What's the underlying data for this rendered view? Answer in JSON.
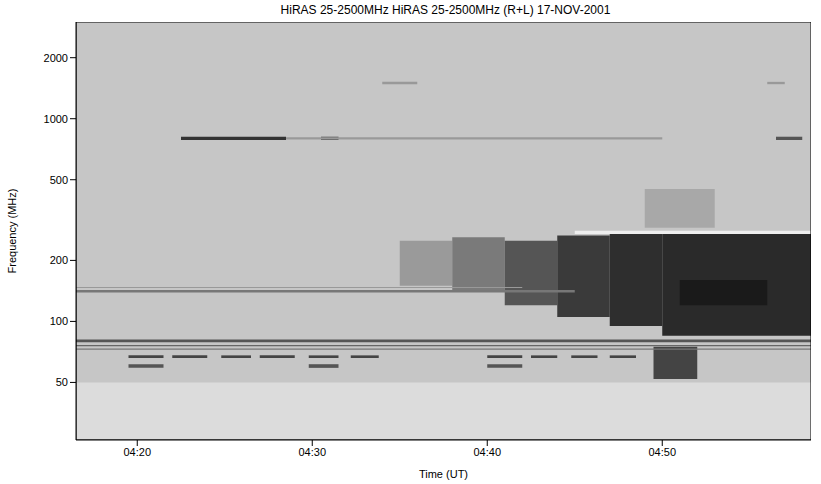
{
  "chart_data": {
    "type": "spectrogram",
    "title": "HiRAS  25-2500MHz HiRAS  25-2500MHz (R+L)  17-NOV-2001",
    "x_label": "Time (UT)",
    "y_label": "Frequency (MHz)",
    "xlim": [
      256.5,
      298.5
    ],
    "xticks": [
      {
        "value": 260,
        "label": "04:20"
      },
      {
        "value": 270,
        "label": "04:30"
      },
      {
        "value": 280,
        "label": "04:40"
      },
      {
        "value": 290,
        "label": "04:50"
      }
    ],
    "ylim": [
      26,
      3000
    ],
    "yticks": [
      50,
      100,
      200,
      500,
      1000,
      2000
    ],
    "log": "y",
    "grid": false,
    "color": "#c6c6c6",
    "features": [
      {
        "time": [
          256.5,
          298.5
        ],
        "frequency": [
          26,
          50
        ],
        "color": "#dcdcdc"
      },
      {
        "time": [
          275,
          278
        ],
        "frequency": [
          150,
          250
        ],
        "color": "#9a9a9a"
      },
      {
        "time": [
          278,
          281
        ],
        "frequency": [
          140,
          260
        ],
        "color": "#7a7a7a"
      },
      {
        "time": [
          281,
          284
        ],
        "frequency": [
          120,
          250
        ],
        "color": "#555555"
      },
      {
        "time": [
          284,
          287
        ],
        "frequency": [
          105,
          265
        ],
        "color": "#3a3a3a"
      },
      {
        "time": [
          287,
          290
        ],
        "frequency": [
          95,
          270
        ],
        "color": "#2e2e2e"
      },
      {
        "time": [
          290,
          298.5
        ],
        "frequency": [
          85,
          270
        ],
        "color": "#2a2a2a"
      },
      {
        "time": [
          291,
          296
        ],
        "frequency": [
          120,
          160
        ],
        "color": "#1a1a1a"
      },
      {
        "time": [
          285,
          298.5
        ],
        "frequency": [
          270,
          280
        ],
        "color": "#eeeeee"
      },
      {
        "time": [
          289,
          293
        ],
        "frequency": [
          290,
          450
        ],
        "color": "#a8a8a8"
      },
      {
        "time": [
          289.5,
          292
        ],
        "frequency": [
          52,
          75
        ],
        "color": "#444444"
      },
      {
        "time": [
          256.5,
          298.5
        ],
        "frequency": [
          79,
          81.5
        ],
        "color": "#555555"
      },
      {
        "time": [
          256.5,
          298.5
        ],
        "frequency": [
          75.5,
          76.5
        ],
        "color": "#666666"
      },
      {
        "time": [
          256.5,
          298.5
        ],
        "frequency": [
          72.5,
          73.5
        ],
        "color": "#777777"
      },
      {
        "time": [
          256.5,
          285
        ],
        "frequency": [
          139,
          143
        ],
        "color": "#777777"
      },
      {
        "time": [
          256.5,
          282
        ],
        "frequency": [
          146,
          148
        ],
        "color": "#999999"
      },
      {
        "time": [
          262.5,
          268.5
        ],
        "frequency": [
          785,
          815
        ],
        "color": "#333333"
      },
      {
        "time": [
          270.5,
          271.5
        ],
        "frequency": [
          785,
          815
        ],
        "color": "#444444"
      },
      {
        "time": [
          268.5,
          290
        ],
        "frequency": [
          790,
          810
        ],
        "color": "#999999"
      },
      {
        "time": [
          296.5,
          298
        ],
        "frequency": [
          785,
          815
        ],
        "color": "#555555"
      },
      {
        "time": [
          274,
          276
        ],
        "frequency": [
          1480,
          1520
        ],
        "color": "#999999"
      },
      {
        "time": [
          296,
          297
        ],
        "frequency": [
          1480,
          1520
        ],
        "color": "#999999"
      },
      {
        "time": [
          259.5,
          261.5
        ],
        "frequency": [
          66,
          68
        ],
        "color": "#444444"
      },
      {
        "time": [
          262,
          264
        ],
        "frequency": [
          66,
          68
        ],
        "color": "#444444"
      },
      {
        "time": [
          264.8,
          266.5
        ],
        "frequency": [
          66,
          68
        ],
        "color": "#444444"
      },
      {
        "time": [
          267,
          269
        ],
        "frequency": [
          66,
          68
        ],
        "color": "#444444"
      },
      {
        "time": [
          269.8,
          271.5
        ],
        "frequency": [
          66,
          68
        ],
        "color": "#444444"
      },
      {
        "time": [
          272.2,
          273.8
        ],
        "frequency": [
          66,
          68
        ],
        "color": "#444444"
      },
      {
        "time": [
          280,
          282
        ],
        "frequency": [
          66,
          68
        ],
        "color": "#444444"
      },
      {
        "time": [
          282.5,
          284
        ],
        "frequency": [
          66,
          68
        ],
        "color": "#444444"
      },
      {
        "time": [
          284.8,
          286.3
        ],
        "frequency": [
          66,
          68
        ],
        "color": "#444444"
      },
      {
        "time": [
          287,
          288.5
        ],
        "frequency": [
          66,
          68
        ],
        "color": "#444444"
      },
      {
        "time": [
          259.5,
          261.5
        ],
        "frequency": [
          59,
          61.5
        ],
        "color": "#555555"
      },
      {
        "time": [
          269.8,
          271.5
        ],
        "frequency": [
          59,
          61.5
        ],
        "color": "#555555"
      },
      {
        "time": [
          280,
          282
        ],
        "frequency": [
          59,
          61.5
        ],
        "color": "#555555"
      }
    ]
  }
}
